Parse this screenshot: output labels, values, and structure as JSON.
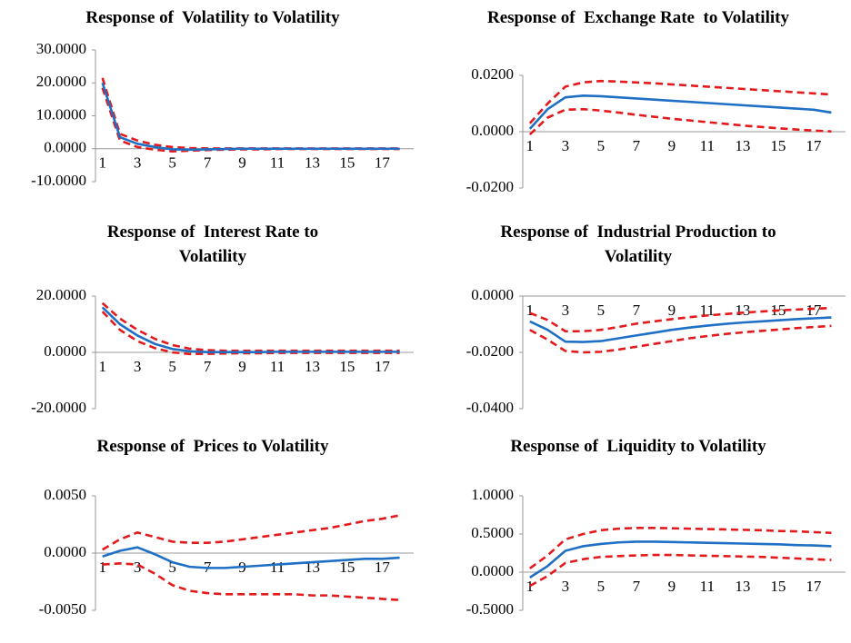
{
  "chart_data": [
    {
      "type": "line",
      "title": "Response of  Volatility to Volatility",
      "categories": [
        1,
        null,
        3,
        null,
        5,
        null,
        7,
        null,
        9,
        null,
        11,
        null,
        13,
        null,
        15,
        null,
        17,
        null
      ],
      "ylim": [
        -10,
        30
      ],
      "yticks": [
        {
          "value": -10,
          "label": "-10.0000"
        },
        {
          "value": 0,
          "label": "0.0000"
        },
        {
          "value": 10,
          "label": "10.0000"
        },
        {
          "value": 20,
          "label": "20.0000"
        },
        {
          "value": 30,
          "label": "30.0000"
        }
      ],
      "series": [
        {
          "color": "#e31a1c",
          "style": "dashed",
          "values": [
            21.5,
            4.5,
            2.5,
            1.2,
            0.5,
            0.2,
            0.1,
            0.1,
            0.1,
            0.1,
            0.1,
            0.1,
            0.1,
            0.1,
            0.1,
            0.1,
            0.1,
            0.1
          ]
        },
        {
          "color": "#e31a1c",
          "style": "dashed",
          "values": [
            18.5,
            2.5,
            0.5,
            -0.3,
            -0.8,
            -0.6,
            -0.4,
            -0.3,
            -0.2,
            -0.2,
            -0.1,
            -0.1,
            -0.1,
            -0.1,
            -0.1,
            -0.1,
            -0.1,
            -0.1
          ]
        },
        {
          "color": "#1f6fc5",
          "style": "solid",
          "values": [
            20,
            3.5,
            1.5,
            0.5,
            -0.2,
            -0.3,
            -0.2,
            -0.1,
            0,
            0,
            0,
            0,
            0,
            0,
            0,
            0,
            0,
            0
          ]
        }
      ]
    },
    {
      "type": "line",
      "title": "Response of  Exchange Rate  to Volatility",
      "categories": [
        1,
        null,
        3,
        null,
        5,
        null,
        7,
        null,
        9,
        null,
        11,
        null,
        13,
        null,
        15,
        null,
        17,
        null
      ],
      "ylim": [
        -0.02,
        0.02
      ],
      "yticks": [
        {
          "value": -0.02,
          "label": "-0.0200"
        },
        {
          "value": 0,
          "label": "0.0000"
        },
        {
          "value": 0.02,
          "label": "0.0200"
        }
      ],
      "series": [
        {
          "color": "#e31a1c",
          "style": "dashed",
          "values": [
            0.003,
            0.01,
            0.016,
            0.0175,
            0.018,
            0.0178,
            0.0175,
            0.0172,
            0.0168,
            0.0164,
            0.016,
            0.0156,
            0.0152,
            0.0148,
            0.0144,
            0.014,
            0.0136,
            0.0132
          ]
        },
        {
          "color": "#e31a1c",
          "style": "dashed",
          "values": [
            -0.001,
            0.005,
            0.0078,
            0.008,
            0.0075,
            0.0068,
            0.006,
            0.0053,
            0.0046,
            0.004,
            0.0034,
            0.0028,
            0.0022,
            0.0017,
            0.0012,
            0.0008,
            0.0004,
            0.0001
          ]
        },
        {
          "color": "#1f6fc5",
          "style": "solid",
          "values": [
            0.001,
            0.008,
            0.0122,
            0.0128,
            0.0126,
            0.0122,
            0.0118,
            0.0114,
            0.011,
            0.0106,
            0.0102,
            0.0098,
            0.0094,
            0.009,
            0.0086,
            0.0082,
            0.0078,
            0.0068
          ]
        }
      ]
    },
    {
      "type": "line",
      "title": "Response of  Interest Rate to Volatility",
      "categories": [
        1,
        null,
        3,
        null,
        5,
        null,
        7,
        null,
        9,
        null,
        11,
        null,
        13,
        null,
        15,
        null,
        17,
        null
      ],
      "ylim": [
        -20,
        20
      ],
      "yticks": [
        {
          "value": -20,
          "label": "-20.0000"
        },
        {
          "value": 0,
          "label": "0.0000"
        },
        {
          "value": 20,
          "label": "20.0000"
        }
      ],
      "series": [
        {
          "color": "#e31a1c",
          "style": "dashed",
          "values": [
            17.5,
            12,
            8,
            4.8,
            2.6,
            1.3,
            0.8,
            0.6,
            0.6,
            0.6,
            0.6,
            0.6,
            0.6,
            0.6,
            0.6,
            0.6,
            0.6,
            0.6
          ]
        },
        {
          "color": "#e31a1c",
          "style": "dashed",
          "values": [
            14.5,
            8,
            4,
            1.5,
            0,
            -0.6,
            -0.5,
            -0.4,
            -0.3,
            -0.3,
            -0.2,
            -0.2,
            -0.2,
            -0.2,
            -0.2,
            -0.2,
            -0.2,
            -0.2
          ]
        },
        {
          "color": "#1f6fc5",
          "style": "solid",
          "values": [
            16,
            10,
            6,
            3,
            1.2,
            0.4,
            0.1,
            0.1,
            0.1,
            0.1,
            0.2,
            0.2,
            0.2,
            0.2,
            0.2,
            0.2,
            0.2,
            0.2
          ]
        }
      ]
    },
    {
      "type": "line",
      "title": "Response of  Industrial Production to Volatility",
      "categories": [
        1,
        null,
        3,
        null,
        5,
        null,
        7,
        null,
        9,
        null,
        11,
        null,
        13,
        null,
        15,
        null,
        17,
        null
      ],
      "ylim": [
        -0.04,
        0
      ],
      "yticks": [
        {
          "value": -0.04,
          "label": "-0.0400"
        },
        {
          "value": -0.02,
          "label": "-0.0200"
        },
        {
          "value": 0,
          "label": "0.0000"
        }
      ],
      "series": [
        {
          "color": "#e31a1c",
          "style": "dashed",
          "values": [
            -0.006,
            -0.0085,
            -0.0125,
            -0.0125,
            -0.012,
            -0.011,
            -0.0098,
            -0.009,
            -0.0082,
            -0.0075,
            -0.0069,
            -0.0064,
            -0.0059,
            -0.0055,
            -0.0051,
            -0.0048,
            -0.0045,
            -0.0042
          ]
        },
        {
          "color": "#e31a1c",
          "style": "dashed",
          "values": [
            -0.012,
            -0.0155,
            -0.0195,
            -0.02,
            -0.0198,
            -0.019,
            -0.018,
            -0.017,
            -0.016,
            -0.015,
            -0.0142,
            -0.0135,
            -0.0129,
            -0.0124,
            -0.0119,
            -0.0114,
            -0.011,
            -0.0106
          ]
        },
        {
          "color": "#1f6fc5",
          "style": "solid",
          "values": [
            -0.009,
            -0.012,
            -0.0162,
            -0.0163,
            -0.016,
            -0.015,
            -0.014,
            -0.013,
            -0.012,
            -0.0112,
            -0.0105,
            -0.0099,
            -0.0094,
            -0.009,
            -0.0086,
            -0.0082,
            -0.0079,
            -0.0076
          ]
        }
      ]
    },
    {
      "type": "line",
      "title": "Response of  Prices to Volatility",
      "categories": [
        1,
        null,
        3,
        null,
        5,
        null,
        7,
        null,
        9,
        null,
        11,
        null,
        13,
        null,
        15,
        null,
        17,
        null
      ],
      "ylim": [
        -0.005,
        0.005
      ],
      "yticks": [
        {
          "value": -0.005,
          "label": "-0.0050"
        },
        {
          "value": 0,
          "label": "0.0000"
        },
        {
          "value": 0.005,
          "label": "0.0050"
        }
      ],
      "series": [
        {
          "color": "#e31a1c",
          "style": "dashed",
          "values": [
            0.0003,
            0.0012,
            0.0018,
            0.0014,
            0.001,
            0.0009,
            0.0009,
            0.001,
            0.0012,
            0.0014,
            0.0016,
            0.0018,
            0.002,
            0.0022,
            0.0025,
            0.0028,
            0.003,
            0.0033
          ]
        },
        {
          "color": "#e31a1c",
          "style": "dashed",
          "values": [
            -0.001,
            -0.0009,
            -0.001,
            -0.0018,
            -0.0028,
            -0.0033,
            -0.0035,
            -0.0036,
            -0.0036,
            -0.0036,
            -0.0036,
            -0.0036,
            -0.0037,
            -0.0037,
            -0.0038,
            -0.0039,
            -0.004,
            -0.0041
          ]
        },
        {
          "color": "#1f6fc5",
          "style": "solid",
          "values": [
            -0.0003,
            0.0002,
            0.0005,
            -0.0001,
            -0.0008,
            -0.0012,
            -0.0013,
            -0.0013,
            -0.0012,
            -0.0011,
            -0.001,
            -0.0009,
            -0.0008,
            -0.0007,
            -0.0006,
            -0.0005,
            -0.0005,
            -0.0004
          ]
        }
      ]
    },
    {
      "type": "line",
      "title": "Response of  Liquidity to Volatility",
      "categories": [
        1,
        null,
        3,
        null,
        5,
        null,
        7,
        null,
        9,
        null,
        11,
        null,
        13,
        null,
        15,
        null,
        17,
        null
      ],
      "ylim": [
        -0.5,
        1
      ],
      "yticks": [
        {
          "value": -0.5,
          "label": "-0.5000"
        },
        {
          "value": 0,
          "label": "0.0000"
        },
        {
          "value": 0.5,
          "label": "0.5000"
        },
        {
          "value": 1,
          "label": "1.0000"
        }
      ],
      "series": [
        {
          "color": "#e31a1c",
          "style": "dashed",
          "values": [
            0.05,
            0.22,
            0.43,
            0.5,
            0.55,
            0.57,
            0.58,
            0.58,
            0.575,
            0.57,
            0.565,
            0.56,
            0.555,
            0.55,
            0.54,
            0.535,
            0.525,
            0.515
          ]
        },
        {
          "color": "#e31a1c",
          "style": "dashed",
          "values": [
            -0.18,
            -0.05,
            0.12,
            0.17,
            0.2,
            0.21,
            0.22,
            0.225,
            0.225,
            0.22,
            0.215,
            0.21,
            0.205,
            0.2,
            0.19,
            0.18,
            0.17,
            0.16
          ]
        },
        {
          "color": "#1f6fc5",
          "style": "solid",
          "values": [
            -0.07,
            0.08,
            0.28,
            0.34,
            0.37,
            0.39,
            0.4,
            0.4,
            0.395,
            0.39,
            0.385,
            0.38,
            0.375,
            0.37,
            0.365,
            0.355,
            0.35,
            0.34
          ]
        }
      ]
    }
  ]
}
